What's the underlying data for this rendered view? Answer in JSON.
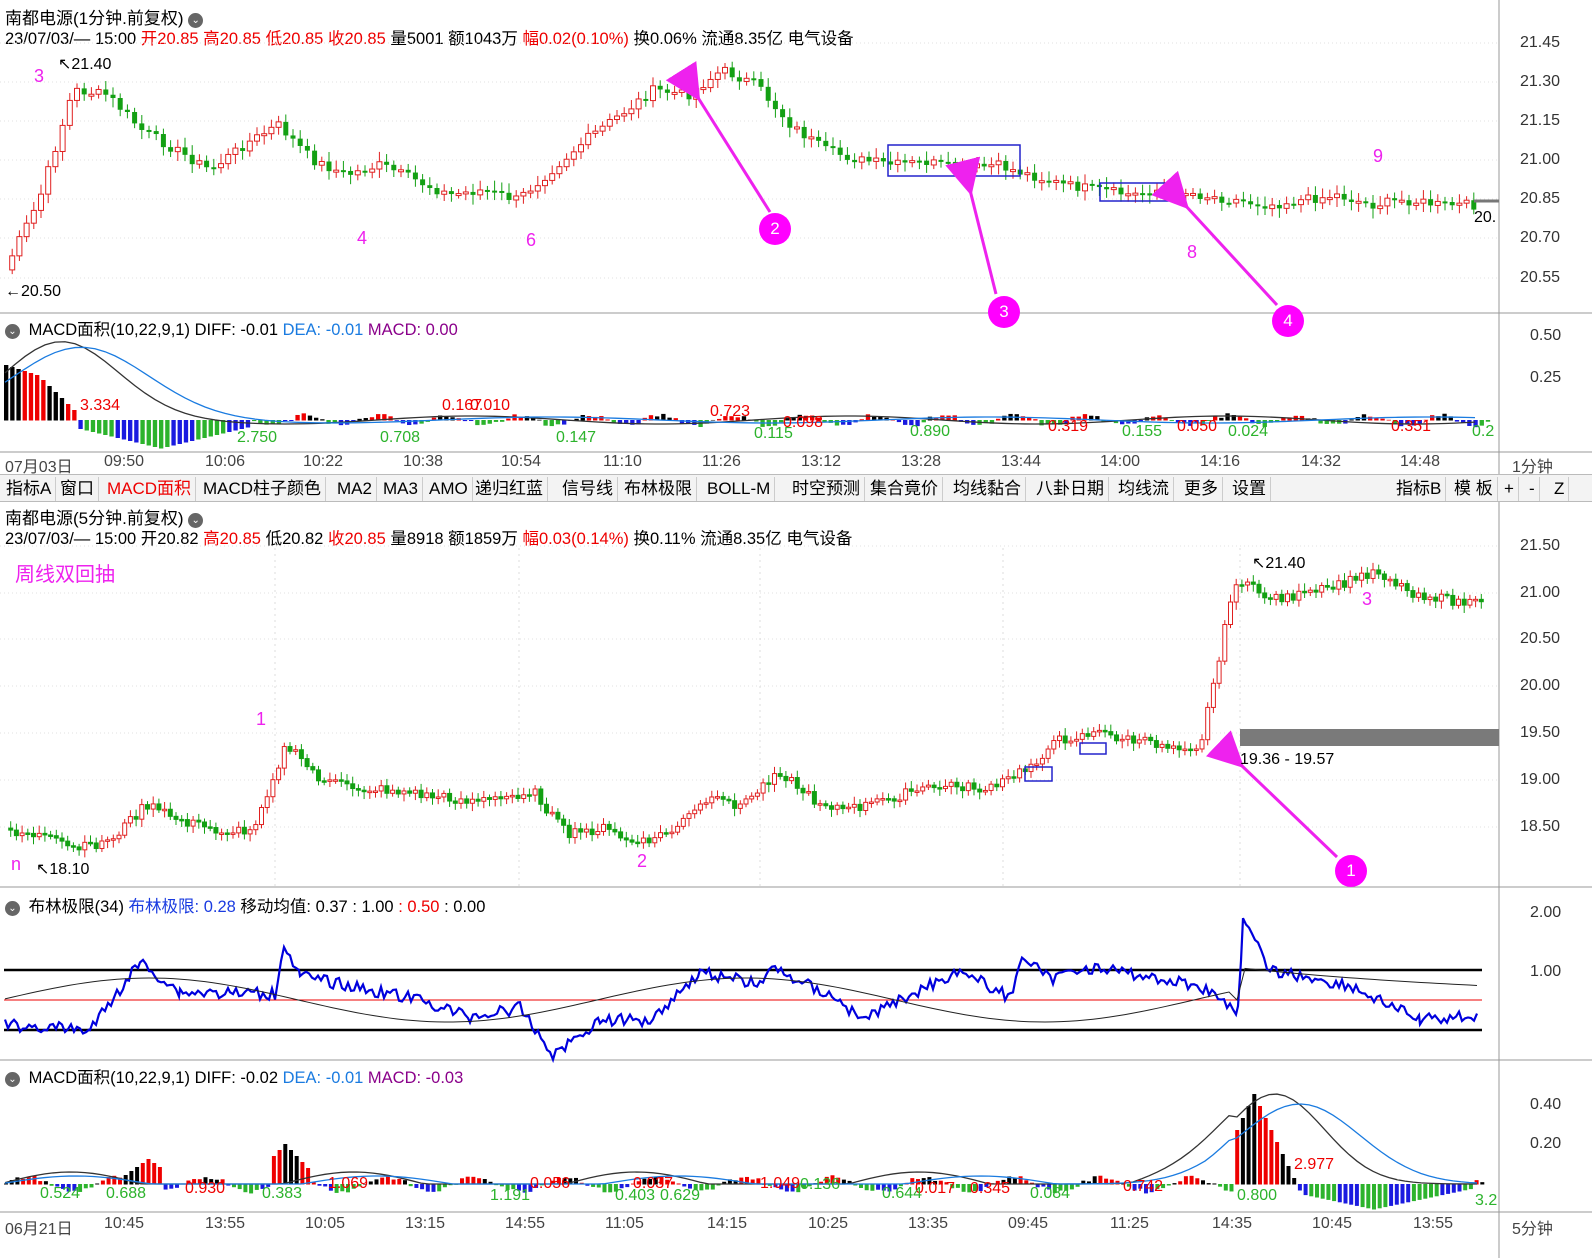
{
  "top": {
    "title": "南都电源(1分钟.前复权)",
    "info_date": "23/07/03/— 15:00",
    "open": "开20.85",
    "high": "高20.85",
    "low": "低20.85",
    "close": "收20.85",
    "vol": "量5001",
    "amount": "额1043万",
    "range": "幅0.02(0.10%)",
    "turnover": "换0.06%",
    "float": "流通8.35亿",
    "sector": "电气设备",
    "y_ticks": [
      "21.45",
      "21.30",
      "21.15",
      "21.00",
      "20.85",
      "20.70",
      "20.55"
    ],
    "hi_label": "21.40",
    "lo_label": "20.50",
    "last_price_label": "20.",
    "wave_labels": [
      "3",
      "4",
      "6",
      "8",
      "9"
    ],
    "callouts": [
      "2",
      "3",
      "4"
    ]
  },
  "macd1": {
    "name": "MACD面积(10,22,9,1)",
    "diff": "DIFF: -0.01",
    "dea": "DEA: -0.01",
    "macd": "MACD: 0.00",
    "y_ticks": [
      "0.50",
      "0.25"
    ],
    "area_labels_red": [
      "3.334",
      "0.167",
      "0.010",
      "0.723",
      "0.098",
      "0.319",
      "0.050",
      "0.351"
    ],
    "area_labels_green": [
      "2.750",
      "0.708",
      "0.147",
      "0.115",
      "0.890",
      "0.155",
      "0.024",
      "0.2"
    ]
  },
  "time_axis_1": [
    "07月03日",
    "09:50",
    "10:06",
    "10:22",
    "10:38",
    "10:54",
    "11:10",
    "11:26",
    "13:12",
    "13:28",
    "13:44",
    "14:00",
    "14:16",
    "14:32",
    "14:48"
  ],
  "period_1": "1分钟",
  "toolbar": {
    "items": [
      "指标A",
      "窗口",
      "MACD面积",
      "MACD柱子颜色",
      "MA2",
      "MA3",
      "AMO",
      "递归红蓝",
      "信号线",
      "布林极限",
      "BOLL-M",
      "时空预测",
      "集合竟价",
      "均线黏合",
      "八卦日期",
      "均线流",
      "更多",
      "设置"
    ],
    "right_items": [
      "指标B",
      "模 板",
      "+",
      "-",
      "Z"
    ],
    "active": "MACD面积"
  },
  "mid": {
    "title": "南都电源(5分钟.前复权)",
    "info_date": "23/07/03/— 15:00",
    "open": "开20.82",
    "high": "高20.85",
    "low": "低20.82",
    "close": "收20.85",
    "vol": "量8918",
    "amount": "额1859万",
    "range": "幅0.03(0.14%)",
    "turnover": "换0.11%",
    "float": "流通8.35亿",
    "sector": "电气设备",
    "note": "周线双回抽",
    "y_ticks": [
      "21.50",
      "21.00",
      "20.50",
      "20.00",
      "19.50",
      "19.00",
      "18.50"
    ],
    "hi_label": "21.40",
    "lo_label": "18.10",
    "gap_label": "19.36 - 19.57",
    "wave_labels": [
      "n",
      "1",
      "2",
      "3"
    ],
    "callouts": [
      "1"
    ]
  },
  "boll": {
    "name": "布林极限(34)",
    "val": "布林极限: 0.28",
    "ma_label": "移动均值: 0.37",
    "l1": ": 1.00",
    "l2": ": 0.50",
    "l3": ": 0.00",
    "y_ticks": [
      "2.00",
      "1.00"
    ]
  },
  "macd2": {
    "name": "MACD面积(10,22,9,1)",
    "diff": "DIFF: -0.02",
    "dea": "DEA: -0.01",
    "macd": "MACD: -0.03",
    "y_ticks": [
      "0.40",
      "0.20"
    ],
    "area_labels_red": [
      "0.930",
      "1.069",
      "0.056",
      "0.037",
      "1.049",
      "0.017",
      "0.345",
      "0.742",
      "2.977"
    ],
    "area_labels_green": [
      "0.524",
      "0.688",
      "0.383",
      "1.191",
      "0.403",
      "0.629",
      "0.136",
      "0.644",
      "0.084",
      "0.800",
      "3.2"
    ]
  },
  "time_axis_2": [
    "06月21日",
    "10:45",
    "13:55",
    "10:05",
    "13:15",
    "14:55",
    "11:05",
    "14:15",
    "10:25",
    "13:35",
    "09:45",
    "11:25",
    "14:35",
    "10:45",
    "13:55"
  ],
  "period_2": "5分钟",
  "colors": {
    "up": "#e02020",
    "down": "#13a013",
    "magenta": "#ee22ee",
    "blue_line": "#1a7be0",
    "boll_line": "#0000dd"
  }
}
